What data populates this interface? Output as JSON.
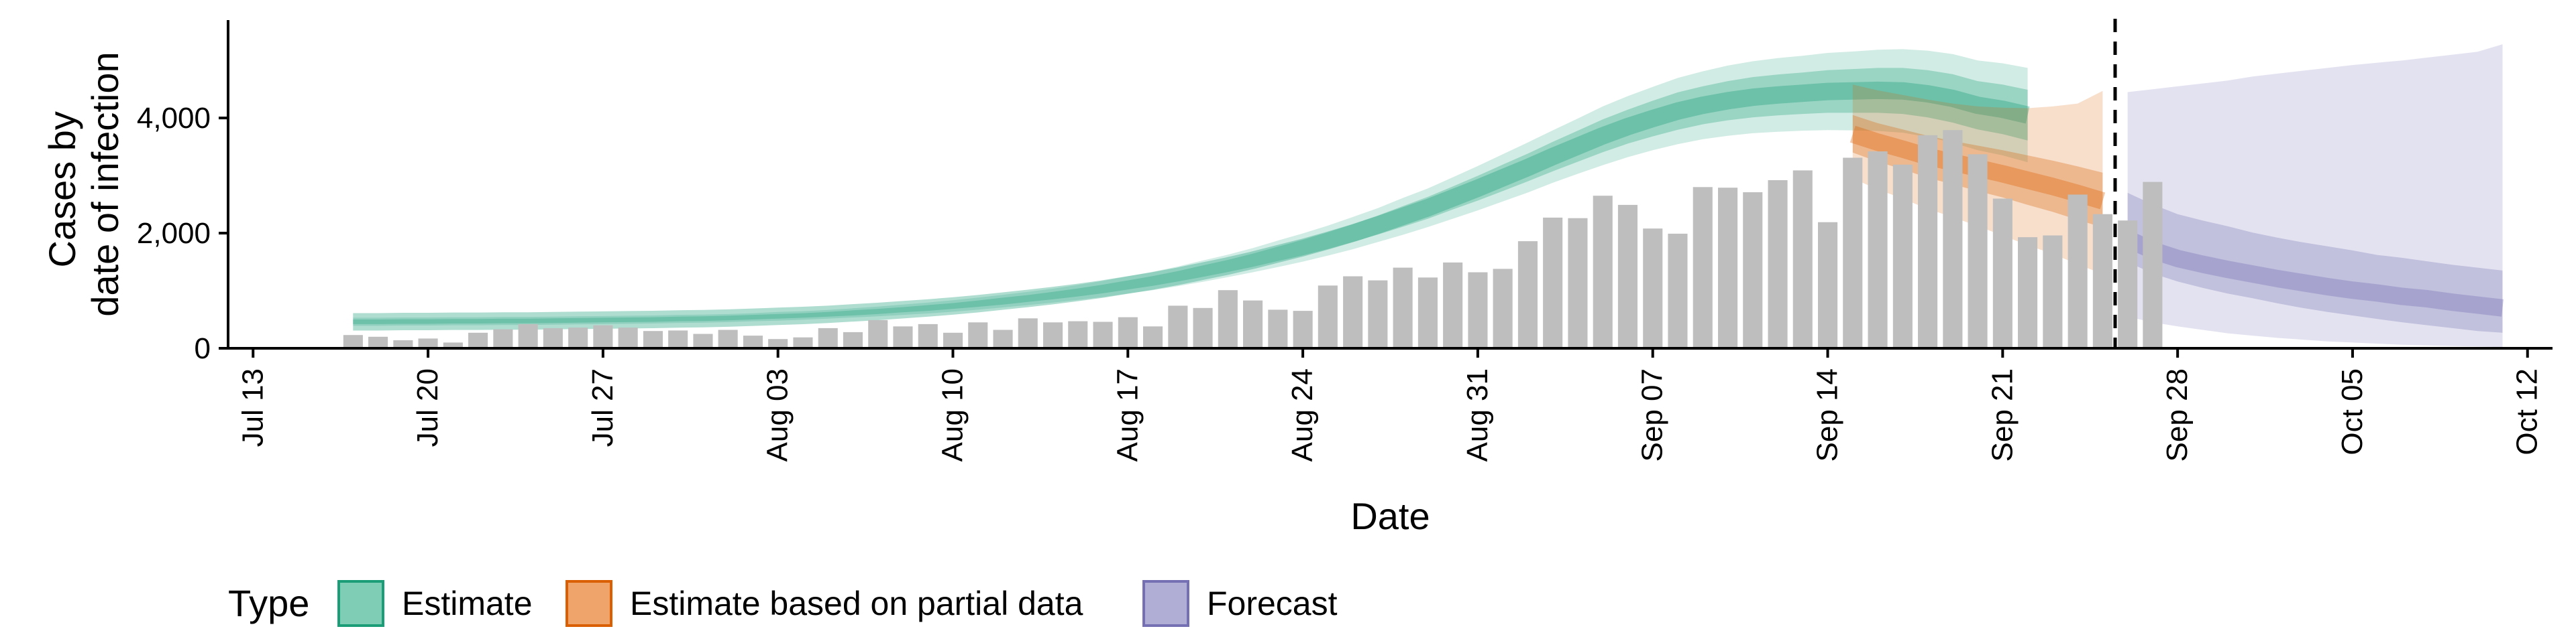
{
  "chart_data": {
    "type": "area",
    "xlabel": "Date",
    "ylabel_lines": [
      "Cases by",
      "date of infection"
    ],
    "x_ticks": [
      "Jul 13",
      "Jul 20",
      "Jul 27",
      "Aug 03",
      "Aug 10",
      "Aug 17",
      "Aug 24",
      "Aug 31",
      "Sep 07",
      "Sep 14",
      "Sep 21",
      "Sep 28",
      "Oct 05",
      "Oct 12"
    ],
    "y_ticks": [
      "0",
      "2,000",
      "4,000"
    ],
    "ylim": [
      0,
      5700
    ],
    "xlim": [
      "2020-07-12",
      "2020-10-13"
    ],
    "legend": {
      "title": "Type",
      "position": "bottom",
      "items": [
        {
          "label": "Estimate",
          "fill": "#7fcdb4",
          "stroke": "#1b9e77"
        },
        {
          "label": "Estimate based on partial data",
          "fill": "#eea46b",
          "stroke": "#d95f02"
        },
        {
          "label": "Forecast",
          "fill": "#b1aed6",
          "stroke": "#7570b3"
        }
      ]
    },
    "series_colors": {
      "Estimate": "#1b9e77",
      "Estimate based on partial data": "#d95f02",
      "Forecast": "#7570b3"
    },
    "bar_color": "#bebebe",
    "cutoff_date": "2020-09-25",
    "reported_cases": {
      "start_date": "2020-07-17",
      "values": [
        230,
        200,
        140,
        170,
        100,
        270,
        330,
        420,
        350,
        360,
        400,
        360,
        300,
        310,
        250,
        320,
        220,
        160,
        190,
        350,
        280,
        490,
        380,
        420,
        270,
        450,
        320,
        520,
        450,
        470,
        460,
        540,
        380,
        740,
        700,
        1010,
        830,
        670,
        650,
        1090,
        1250,
        1180,
        1400,
        1230,
        1490,
        1320,
        1380,
        1860,
        2270,
        2260,
        2650,
        2490,
        2080,
        1990,
        2800,
        2790,
        2710,
        2920,
        3090,
        2190,
        3310,
        3420,
        3190,
        3700,
        3790,
        3370,
        2600,
        1930,
        1960,
        2670,
        2330,
        2220,
        2890
      ]
    },
    "estimate": {
      "start_date": "2020-07-17",
      "median": [
        460,
        460,
        465,
        465,
        470,
        470,
        475,
        475,
        480,
        485,
        490,
        495,
        500,
        510,
        515,
        525,
        540,
        555,
        570,
        590,
        615,
        640,
        670,
        700,
        735,
        775,
        820,
        865,
        915,
        970,
        1030,
        1100,
        1170,
        1250,
        1340,
        1430,
        1530,
        1640,
        1750,
        1870,
        2000,
        2140,
        2290,
        2440,
        2610,
        2780,
        2960,
        3140,
        3330,
        3510,
        3690,
        3850,
        3990,
        4120,
        4220,
        4300,
        4360,
        4400,
        4430,
        4460,
        4470,
        4480,
        4470,
        4420,
        4340,
        4220,
        4150,
        4050
      ],
      "inner": [
        [
          420,
          500
        ],
        [
          420,
          500
        ],
        [
          425,
          505
        ],
        [
          425,
          505
        ],
        [
          430,
          510
        ],
        [
          430,
          510
        ],
        [
          435,
          515
        ],
        [
          435,
          515
        ],
        [
          440,
          520
        ],
        [
          445,
          525
        ],
        [
          450,
          530
        ],
        [
          455,
          535
        ],
        [
          460,
          540
        ],
        [
          470,
          550
        ],
        [
          475,
          555
        ],
        [
          485,
          565
        ],
        [
          500,
          580
        ],
        [
          515,
          595
        ],
        [
          530,
          610
        ],
        [
          550,
          630
        ],
        [
          570,
          660
        ],
        [
          595,
          685
        ],
        [
          625,
          715
        ],
        [
          650,
          750
        ],
        [
          685,
          785
        ],
        [
          720,
          830
        ],
        [
          760,
          880
        ],
        [
          805,
          925
        ],
        [
          850,
          980
        ],
        [
          900,
          1040
        ],
        [
          955,
          1105
        ],
        [
          1020,
          1180
        ],
        [
          1085,
          1255
        ],
        [
          1160,
          1340
        ],
        [
          1240,
          1440
        ],
        [
          1325,
          1535
        ],
        [
          1415,
          1645
        ],
        [
          1515,
          1765
        ],
        [
          1615,
          1885
        ],
        [
          1725,
          2015
        ],
        [
          1845,
          2155
        ],
        [
          1975,
          2305
        ],
        [
          2110,
          2470
        ],
        [
          2250,
          2630
        ],
        [
          2410,
          2810
        ],
        [
          2565,
          2995
        ],
        [
          2730,
          3190
        ],
        [
          2900,
          3380
        ],
        [
          3075,
          3585
        ],
        [
          3240,
          3780
        ],
        [
          3405,
          3975
        ],
        [
          3555,
          4145
        ],
        [
          3680,
          4300
        ],
        [
          3795,
          4445
        ],
        [
          3890,
          4550
        ],
        [
          3960,
          4640
        ],
        [
          4010,
          4710
        ],
        [
          4045,
          4755
        ],
        [
          4070,
          4790
        ],
        [
          4090,
          4830
        ],
        [
          4090,
          4850
        ],
        [
          4090,
          4870
        ],
        [
          4070,
          4870
        ],
        [
          4010,
          4830
        ],
        [
          3920,
          4760
        ],
        [
          3800,
          4640
        ],
        [
          3720,
          4580
        ],
        [
          3610,
          4490
        ]
      ],
      "outer": [
        [
          390,
          530
        ],
        [
          390,
          530
        ],
        [
          395,
          535
        ],
        [
          395,
          535
        ],
        [
          400,
          540
        ],
        [
          400,
          540
        ],
        [
          405,
          545
        ],
        [
          405,
          545
        ],
        [
          410,
          550
        ],
        [
          415,
          555
        ],
        [
          420,
          560
        ],
        [
          425,
          565
        ],
        [
          430,
          570
        ],
        [
          440,
          580
        ],
        [
          445,
          585
        ],
        [
          455,
          595
        ],
        [
          470,
          610
        ],
        [
          480,
          630
        ],
        [
          495,
          645
        ],
        [
          515,
          665
        ],
        [
          535,
          695
        ],
        [
          555,
          725
        ],
        [
          580,
          760
        ],
        [
          605,
          795
        ],
        [
          635,
          835
        ],
        [
          670,
          880
        ],
        [
          710,
          930
        ],
        [
          750,
          980
        ],
        [
          795,
          1035
        ],
        [
          840,
          1100
        ],
        [
          890,
          1170
        ],
        [
          950,
          1250
        ],
        [
          1010,
          1330
        ],
        [
          1080,
          1420
        ],
        [
          1155,
          1525
        ],
        [
          1235,
          1625
        ],
        [
          1320,
          1740
        ],
        [
          1410,
          1870
        ],
        [
          1505,
          1995
        ],
        [
          1610,
          2130
        ],
        [
          1720,
          2280
        ],
        [
          1845,
          2435
        ],
        [
          1970,
          2610
        ],
        [
          2105,
          2775
        ],
        [
          2250,
          2970
        ],
        [
          2395,
          3165
        ],
        [
          2550,
          3370
        ],
        [
          2705,
          3575
        ],
        [
          2875,
          3785
        ],
        [
          3030,
          3990
        ],
        [
          3180,
          4200
        ],
        [
          3320,
          4380
        ],
        [
          3440,
          4540
        ],
        [
          3545,
          4695
        ],
        [
          3630,
          4810
        ],
        [
          3690,
          4910
        ],
        [
          3735,
          4985
        ],
        [
          3760,
          5040
        ],
        [
          3780,
          5080
        ],
        [
          3790,
          5130
        ],
        [
          3785,
          5155
        ],
        [
          3775,
          5185
        ],
        [
          3745,
          5195
        ],
        [
          3670,
          5170
        ],
        [
          3570,
          5110
        ],
        [
          3440,
          5000
        ],
        [
          3350,
          4950
        ],
        [
          3230,
          4870
        ]
      ]
    },
    "estimate_partial": {
      "start_date": "2020-09-15",
      "median": [
        3720,
        3580,
        3460,
        3330,
        3230,
        3130,
        3030,
        2920,
        2810,
        2690,
        2560
      ],
      "inner": [
        [
          3400,
          4050
        ],
        [
          3240,
          3910
        ],
        [
          3110,
          3800
        ],
        [
          2960,
          3690
        ],
        [
          2850,
          3600
        ],
        [
          2730,
          3520
        ],
        [
          2620,
          3440
        ],
        [
          2490,
          3350
        ],
        [
          2370,
          3260
        ],
        [
          2230,
          3160
        ],
        [
          2100,
          3050
        ]
      ],
      "outer": [
        [
          2950,
          4580
        ],
        [
          2760,
          4480
        ],
        [
          2600,
          4400
        ],
        [
          2420,
          4320
        ],
        [
          2280,
          4250
        ],
        [
          2120,
          4200
        ],
        [
          1960,
          4180
        ],
        [
          1790,
          4170
        ],
        [
          1640,
          4200
        ],
        [
          1460,
          4250
        ],
        [
          1290,
          4470
        ]
      ]
    },
    "forecast": {
      "start_date": "2020-09-26",
      "median": [
        1900,
        1700,
        1560,
        1460,
        1370,
        1290,
        1210,
        1140,
        1070,
        1010,
        960,
        900,
        860,
        800,
        750,
        700
      ],
      "inner": [
        [
          1500,
          2700
        ],
        [
          1300,
          2500
        ],
        [
          1160,
          2330
        ],
        [
          1050,
          2220
        ],
        [
          950,
          2120
        ],
        [
          870,
          2010
        ],
        [
          780,
          1920
        ],
        [
          700,
          1840
        ],
        [
          630,
          1770
        ],
        [
          570,
          1700
        ],
        [
          510,
          1620
        ],
        [
          450,
          1570
        ],
        [
          400,
          1510
        ],
        [
          350,
          1450
        ],
        [
          300,
          1400
        ],
        [
          270,
          1350
        ]
      ],
      "outer": [
        [
          550,
          4450
        ],
        [
          450,
          4500
        ],
        [
          380,
          4550
        ],
        [
          320,
          4600
        ],
        [
          260,
          4650
        ],
        [
          220,
          4720
        ],
        [
          180,
          4770
        ],
        [
          150,
          4820
        ],
        [
          120,
          4870
        ],
        [
          100,
          4920
        ],
        [
          80,
          4960
        ],
        [
          60,
          5000
        ],
        [
          50,
          5050
        ],
        [
          40,
          5100
        ],
        [
          30,
          5150
        ],
        [
          20,
          5280
        ]
      ]
    }
  }
}
